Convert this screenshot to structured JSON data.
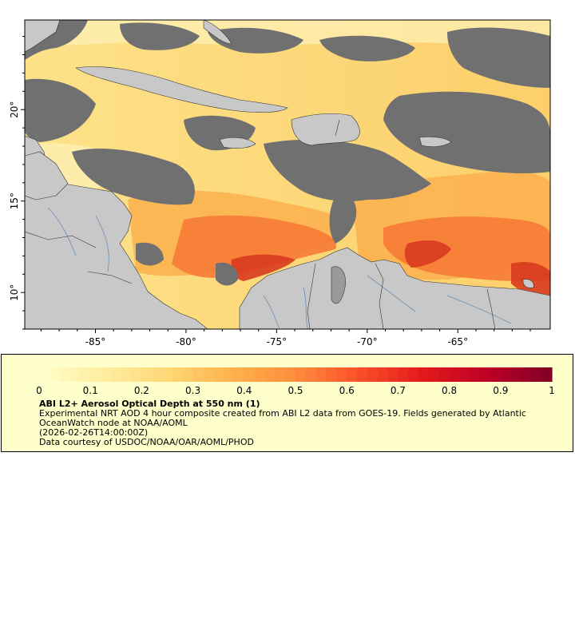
{
  "map": {
    "x_axis": {
      "ticks": [
        "-85°",
        "-80°",
        "-75°",
        "-70°",
        "-65°"
      ],
      "tick_values": [
        -85,
        -80,
        -75,
        -70,
        -65
      ],
      "range": [
        -88.9,
        -59.9
      ]
    },
    "y_axis": {
      "ticks": [
        "20°",
        "15°",
        "10°"
      ],
      "tick_values": [
        20,
        15,
        10
      ],
      "range": [
        8.0,
        24.9
      ]
    },
    "colors": {
      "land": "#c8c8c8",
      "no_data": "#707070",
      "border": "#333333",
      "river": "#6a8fb5",
      "frame": "#000000"
    }
  },
  "colorbar": {
    "min": 0,
    "max": 1,
    "ticks": [
      "0",
      "0.1",
      "0.2",
      "0.3",
      "0.4",
      "0.5",
      "0.6",
      "0.7",
      "0.8",
      "0.9",
      "1"
    ],
    "palette": [
      "#ffffcc",
      "#ffeda0",
      "#fed976",
      "#feb24c",
      "#fd8d3c",
      "#fc4e2a",
      "#e31a1c",
      "#bd0026",
      "#800026"
    ]
  },
  "legend": {
    "title": "ABI L2+ Aerosol Optical Depth at 550 nm (1)",
    "description": "Experimental NRT AOD 4 hour composite created from ABI L2 data from GOES-19. Fields generated by Atlantic OceanWatch node at NOAA/AOML",
    "time": "(2026-02-26T14:00:00Z)",
    "credit": "Data courtesy of USDOC/NOAA/OAR/AOML/PHOD"
  }
}
